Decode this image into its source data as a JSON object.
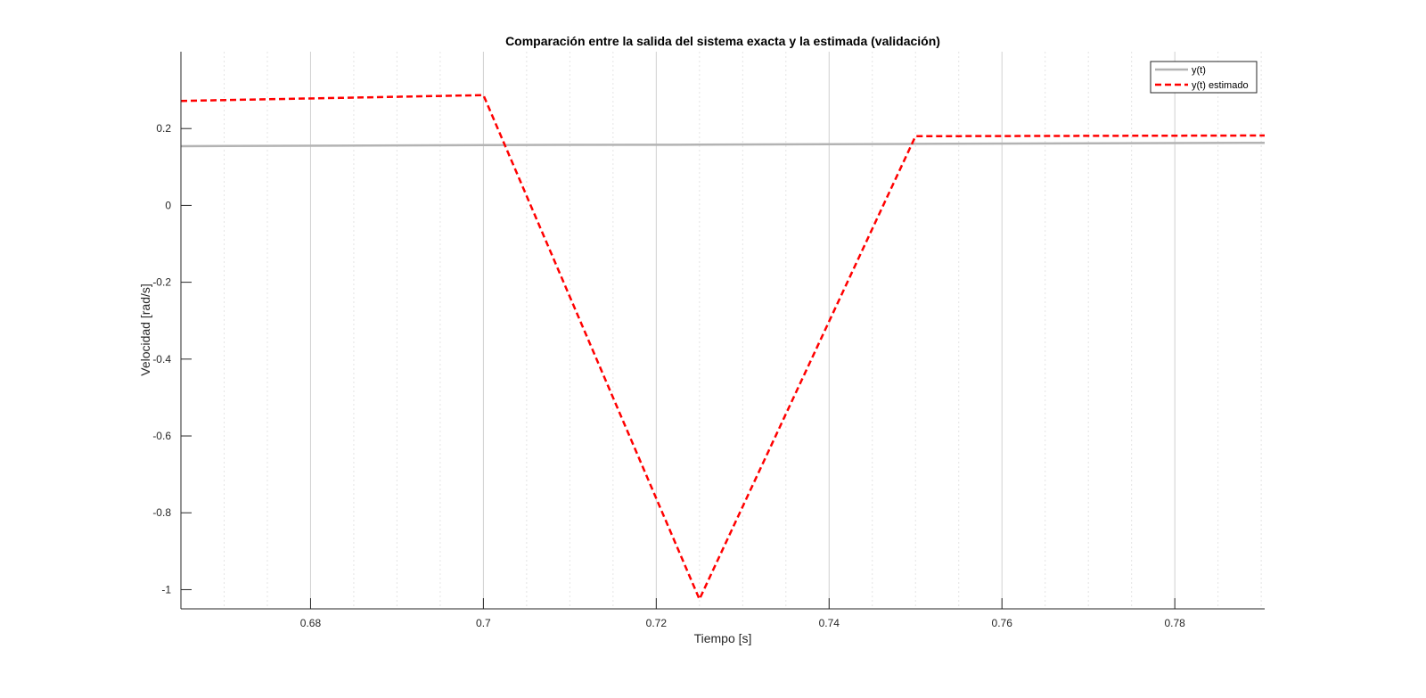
{
  "chart_data": {
    "type": "line",
    "title": "Comparación entre la salida del sistema exacta y la estimada (validación)",
    "xlabel": "Tiempo [s]",
    "ylabel": "Velocidad [rad/s]",
    "xlim": [
      0.665,
      0.7904
    ],
    "ylim": [
      -1.05,
      0.4
    ],
    "xticks": [
      0.68,
      0.7,
      0.72,
      0.74,
      0.76,
      0.78
    ],
    "xtick_labels": [
      "0.68",
      "0.7",
      "0.72",
      "0.74",
      "0.76",
      "0.78"
    ],
    "yticks": [
      -1,
      -0.8,
      -0.6,
      -0.4,
      -0.2,
      0,
      0.2
    ],
    "ytick_labels": [
      "-1",
      "-0.8",
      "-0.6",
      "-0.4",
      "-0.2",
      "0",
      "0.2"
    ],
    "grid": "x-major-and-minor",
    "legend_position": "top-right",
    "series": [
      {
        "name": "y(t)",
        "color": "#b3b3b3",
        "style": "solid",
        "x": [
          0.665,
          0.7,
          0.725,
          0.75,
          0.7904
        ],
        "y": [
          0.154,
          0.157,
          0.158,
          0.16,
          0.163
        ]
      },
      {
        "name": "y(t) estimado",
        "color": "#ff0000",
        "style": "dashed",
        "x": [
          0.665,
          0.7,
          0.725,
          0.75,
          0.7904
        ],
        "y": [
          0.272,
          0.287,
          -1.025,
          0.18,
          0.182
        ]
      }
    ]
  }
}
